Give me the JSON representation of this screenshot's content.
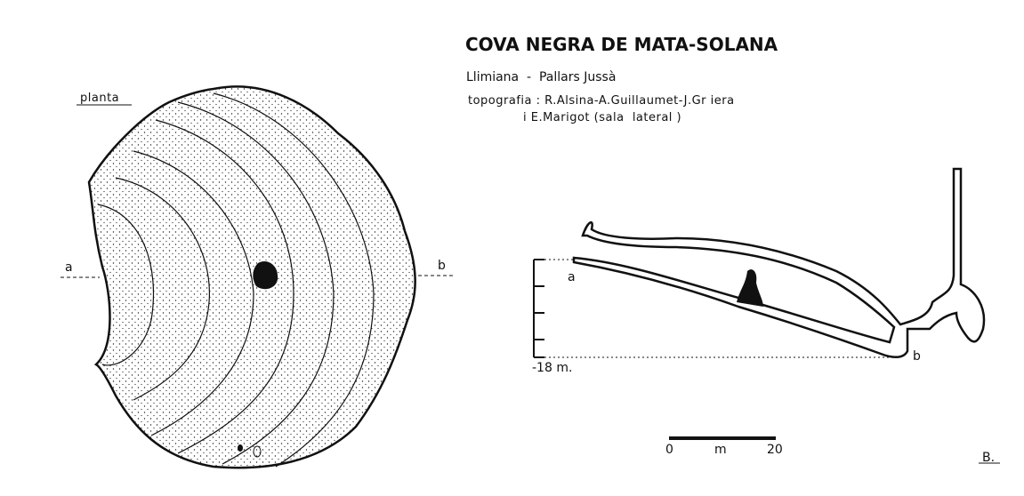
{
  "header": {
    "title": "COVA NEGRA DE MATA-SOLANA",
    "location": "Llimiana  -  Pallars Jussà",
    "credits": [
      "topografia : R.Alsina-A.Guillaumet-J.Gr iera",
      "i E.Marigot (sala  lateral )"
    ]
  },
  "plan": {
    "label": "planta",
    "section_a": "a",
    "section_b": "b"
  },
  "profile": {
    "point_a": "a",
    "point_b": "b",
    "depth": "-18 m."
  },
  "scale": {
    "start": "0",
    "unit": "m",
    "end": "20"
  },
  "signature": "B."
}
